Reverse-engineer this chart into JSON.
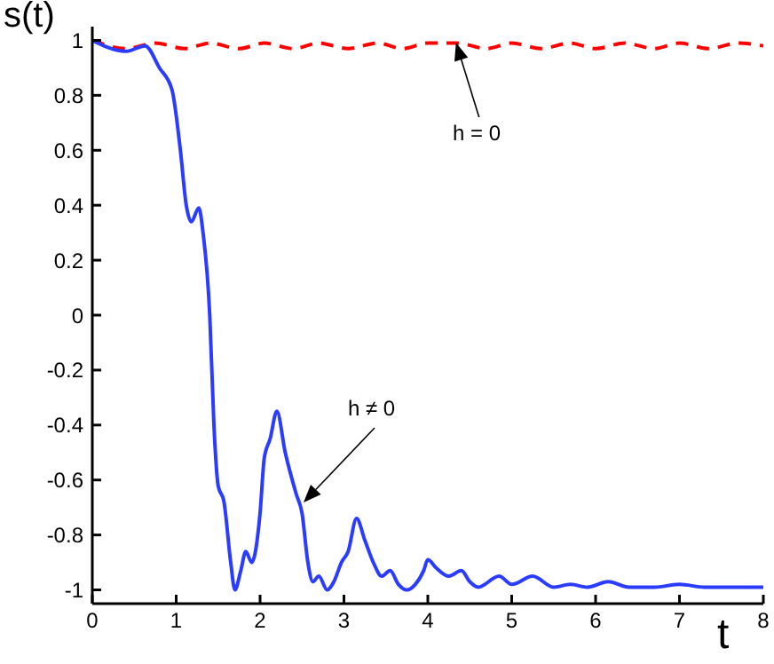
{
  "chart_data": {
    "type": "line",
    "xlabel": "t",
    "ylabel": "s(t)",
    "xlim": [
      0,
      8
    ],
    "ylim": [
      -1.05,
      1.05
    ],
    "xticks": [
      0,
      1,
      2,
      3,
      4,
      5,
      6,
      7,
      8
    ],
    "yticks": [
      -1,
      -0.8,
      -0.6,
      -0.4,
      -0.2,
      0,
      0.2,
      0.4,
      0.6,
      0.8,
      1
    ],
    "marker": "none",
    "series": [
      {
        "color": "#ff0000",
        "line_style": "dashed",
        "x": [
          0,
          0.4,
          0.75,
          1.1,
          1.4,
          1.75,
          2.05,
          2.4,
          2.7,
          3.05,
          3.4,
          3.7,
          4.0,
          4.35,
          4.7,
          5.0,
          5.35,
          5.7,
          6.0,
          6.35,
          6.7,
          7.0,
          7.35,
          7.7,
          8.0
        ],
        "values": [
          1,
          0.97,
          0.99,
          0.97,
          0.99,
          0.97,
          0.99,
          0.97,
          0.99,
          0.97,
          0.99,
          0.97,
          0.99,
          0.99,
          0.97,
          0.99,
          0.97,
          0.99,
          0.97,
          0.99,
          0.97,
          0.99,
          0.97,
          0.99,
          0.98
        ]
      },
      {
        "color": "#2a3cff",
        "line_style": "solid",
        "x": [
          0,
          0.4,
          0.63,
          0.8,
          0.95,
          1.05,
          1.12,
          1.18,
          1.27,
          1.32,
          1.4,
          1.45,
          1.5,
          1.57,
          1.65,
          1.7,
          1.77,
          1.83,
          1.9,
          2.0,
          2.05,
          2.12,
          2.2,
          2.3,
          2.43,
          2.5,
          2.57,
          2.63,
          2.7,
          2.8,
          2.88,
          2.97,
          3.05,
          3.15,
          3.25,
          3.35,
          3.45,
          3.55,
          3.65,
          3.75,
          3.85,
          3.95,
          4.0,
          4.1,
          4.25,
          4.4,
          4.5,
          4.6,
          4.85,
          5.0,
          5.25,
          5.5,
          5.7,
          5.9,
          6.15,
          6.4,
          6.7,
          7.0,
          7.3,
          7.6,
          8.0
        ],
        "values": [
          1,
          0.96,
          0.98,
          0.9,
          0.82,
          0.6,
          0.4,
          0.34,
          0.39,
          0.3,
          0,
          -0.4,
          -0.62,
          -0.68,
          -0.9,
          -1.0,
          -0.93,
          -0.86,
          -0.9,
          -0.72,
          -0.52,
          -0.45,
          -0.35,
          -0.5,
          -0.65,
          -0.72,
          -0.9,
          -0.97,
          -0.95,
          -1.0,
          -0.97,
          -0.9,
          -0.86,
          -0.74,
          -0.82,
          -0.9,
          -0.95,
          -0.93,
          -0.98,
          -1.0,
          -0.98,
          -0.93,
          -0.89,
          -0.92,
          -0.95,
          -0.93,
          -0.97,
          -0.99,
          -0.95,
          -0.98,
          -0.95,
          -0.99,
          -0.98,
          -0.99,
          -0.97,
          -0.99,
          -0.99,
          -0.98,
          -0.99,
          -0.99,
          -0.99
        ]
      }
    ],
    "annotations": [
      "h = 0",
      "h ≠ 0"
    ]
  }
}
